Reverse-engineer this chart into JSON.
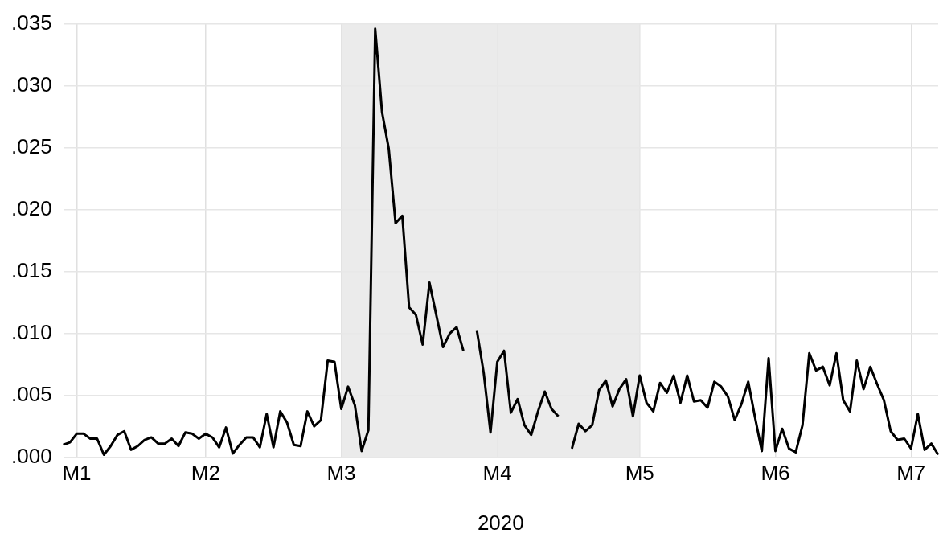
{
  "chart_data": {
    "type": "line",
    "xlabel": "2020",
    "categories": [
      null,
      null,
      "M1",
      null,
      null,
      null,
      null,
      null,
      null,
      null,
      null,
      null,
      null,
      null,
      null,
      null,
      null,
      null,
      null,
      null,
      null,
      "M2",
      null,
      null,
      null,
      null,
      null,
      null,
      null,
      null,
      null,
      null,
      null,
      null,
      null,
      null,
      null,
      null,
      null,
      null,
      null,
      "M3",
      null,
      null,
      null,
      null,
      null,
      null,
      null,
      null,
      null,
      null,
      null,
      null,
      null,
      null,
      null,
      null,
      null,
      null,
      null,
      null,
      null,
      null,
      "M4",
      null,
      null,
      null,
      null,
      null,
      null,
      null,
      null,
      null,
      null,
      null,
      null,
      null,
      null,
      null,
      null,
      null,
      null,
      null,
      null,
      "M5",
      null,
      null,
      null,
      null,
      null,
      null,
      null,
      null,
      null,
      null,
      null,
      null,
      null,
      null,
      null,
      null,
      null,
      null,
      null,
      "M6",
      null,
      null,
      null,
      null,
      null,
      null,
      null,
      null,
      null,
      null,
      null,
      null,
      null,
      null,
      null,
      null,
      null,
      null,
      null,
      "M7",
      null,
      null,
      null,
      null
    ],
    "series": [
      {
        "color": "#000000",
        "values": [
          0.001,
          0.0012,
          0.0019,
          0.0019,
          0.0015,
          0.0015,
          0.0002,
          0.0009,
          0.0018,
          0.0021,
          0.0006,
          0.0009,
          0.0014,
          0.0016,
          0.0011,
          0.0011,
          0.0015,
          0.0009,
          0.002,
          0.0019,
          0.0015,
          0.0019,
          0.0016,
          0.0008,
          0.0024,
          0.0003,
          0.001,
          0.0016,
          0.0016,
          0.0008,
          0.0035,
          0.0008,
          0.0037,
          0.0028,
          0.001,
          0.0009,
          0.0037,
          0.0025,
          0.003,
          0.0078,
          0.0077,
          0.0039,
          0.0057,
          0.0042,
          0.0005,
          0.0022,
          0.0346,
          0.0279,
          0.0249,
          0.0189,
          0.0195,
          0.0121,
          0.0115,
          0.0091,
          0.0141,
          0.0115,
          0.0089,
          0.01,
          0.0105,
          0.0086,
          null,
          0.0102,
          0.0068,
          0.002,
          0.0077,
          0.0086,
          0.0036,
          0.0047,
          0.0026,
          0.0018,
          0.0037,
          0.0053,
          0.0039,
          0.0033,
          null,
          0.0007,
          0.0027,
          0.0021,
          0.0026,
          0.0054,
          0.0062,
          0.0041,
          0.0055,
          0.0063,
          0.0033,
          0.0066,
          0.0044,
          0.0037,
          0.006,
          0.0052,
          0.0066,
          0.0044,
          0.0066,
          0.0045,
          0.0046,
          0.004,
          0.0061,
          0.0057,
          0.0049,
          0.003,
          0.0043,
          0.0061,
          0.0032,
          0.0005,
          0.008,
          0.0005,
          0.0023,
          0.0007,
          0.0004,
          0.0026,
          0.0084,
          0.007,
          0.0073,
          0.0058,
          0.0084,
          0.0046,
          0.0037,
          0.0078,
          0.0055,
          0.0073,
          0.0059,
          0.0046,
          0.0021,
          0.0014,
          0.0015,
          0.0007,
          0.0035,
          0.0006,
          0.0011,
          0.0002
        ]
      }
    ],
    "ylim": [
      0,
      0.035
    ],
    "yticks": [
      {
        "value": 0,
        "label": ".000"
      },
      {
        "value": 0.005,
        "label": ".005"
      },
      {
        "value": 0.01,
        "label": ".010"
      },
      {
        "value": 0.015,
        "label": ".015"
      },
      {
        "value": 0.02,
        "label": ".020"
      },
      {
        "value": 0.025,
        "label": ".025"
      },
      {
        "value": 0.03,
        "label": ".030"
      },
      {
        "value": 0.035,
        "label": ".035"
      }
    ],
    "bands": [
      {
        "axis": "x",
        "from": "M3",
        "to": "M5",
        "color": "#e8e8e8"
      }
    ],
    "grid": true,
    "legend": false,
    "marker": "none",
    "line_style": "solid"
  }
}
